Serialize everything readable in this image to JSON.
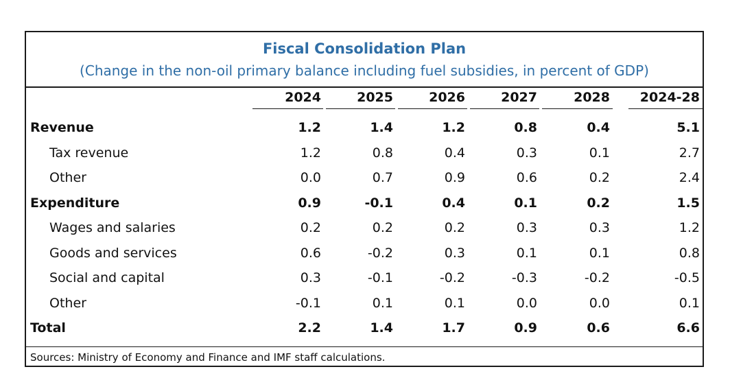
{
  "chart_data": {
    "type": "table",
    "title": "Fiscal Consolidation Plan",
    "subtitle": "(Change in the non-oil primary balance including fuel subsidies, in percent of GDP)",
    "columns": [
      "2024",
      "2025",
      "2026",
      "2027",
      "2028",
      "2024-28"
    ],
    "rows": [
      {
        "label": "Revenue",
        "bold": true,
        "values": [
          "1.2",
          "1.4",
          "1.2",
          "0.8",
          "0.4",
          "5.1"
        ]
      },
      {
        "label": "Tax revenue",
        "bold": false,
        "values": [
          "1.2",
          "0.8",
          "0.4",
          "0.3",
          "0.1",
          "2.7"
        ]
      },
      {
        "label": "Other",
        "bold": false,
        "values": [
          "0.0",
          "0.7",
          "0.9",
          "0.6",
          "0.2",
          "2.4"
        ]
      },
      {
        "label": "Expenditure",
        "bold": true,
        "values": [
          "0.9",
          "-0.1",
          "0.4",
          "0.1",
          "0.2",
          "1.5"
        ]
      },
      {
        "label": "Wages and salaries",
        "bold": false,
        "values": [
          "0.2",
          "0.2",
          "0.2",
          "0.3",
          "0.3",
          "1.2"
        ]
      },
      {
        "label": "Goods and services",
        "bold": false,
        "values": [
          "0.6",
          "-0.2",
          "0.3",
          "0.1",
          "0.1",
          "0.8"
        ]
      },
      {
        "label": "Social and capital",
        "bold": false,
        "values": [
          "0.3",
          "-0.1",
          "-0.2",
          "-0.3",
          "-0.2",
          "-0.5"
        ]
      },
      {
        "label": "Other",
        "bold": false,
        "values": [
          "-0.1",
          "0.1",
          "0.1",
          "0.0",
          "0.0",
          "0.1"
        ]
      },
      {
        "label": "Total",
        "bold": true,
        "values": [
          "2.2",
          "1.4",
          "1.7",
          "0.9",
          "0.6",
          "6.6"
        ]
      }
    ],
    "source": "Sources: Ministry of Economy and Finance and IMF staff calculations."
  }
}
